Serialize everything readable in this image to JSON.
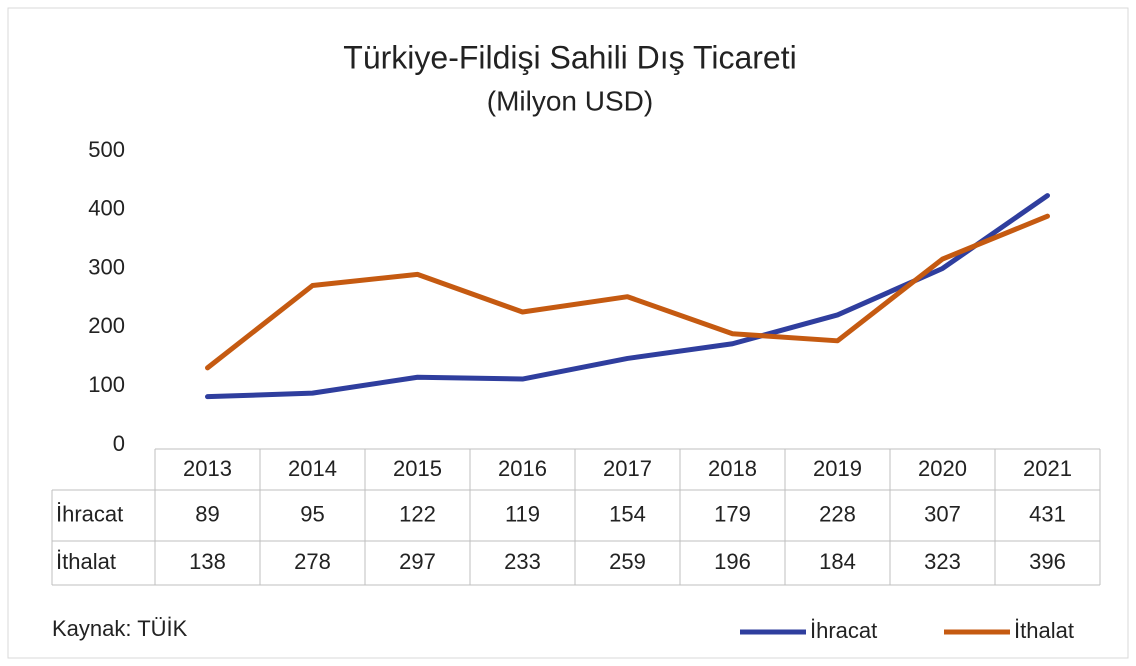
{
  "chart_data": {
    "type": "line",
    "title": "Türkiye-Fildişi Sahili Dış Ticareti",
    "subtitle": "(Milyon USD)",
    "categories": [
      "2013",
      "2014",
      "2015",
      "2016",
      "2017",
      "2018",
      "2019",
      "2020",
      "2021"
    ],
    "series": [
      {
        "name": "İhracat",
        "color": "#2f3e9e",
        "values": [
          89,
          95,
          122,
          119,
          154,
          179,
          228,
          307,
          431
        ]
      },
      {
        "name": "İthalat",
        "color": "#c55a11",
        "values": [
          138,
          278,
          297,
          233,
          259,
          196,
          184,
          323,
          396
        ]
      }
    ],
    "ylim": [
      0,
      500
    ],
    "yticks": [
      0,
      100,
      200,
      300,
      400,
      500
    ],
    "source": "Kaynak: TÜİK",
    "legend": "bottom-right"
  }
}
